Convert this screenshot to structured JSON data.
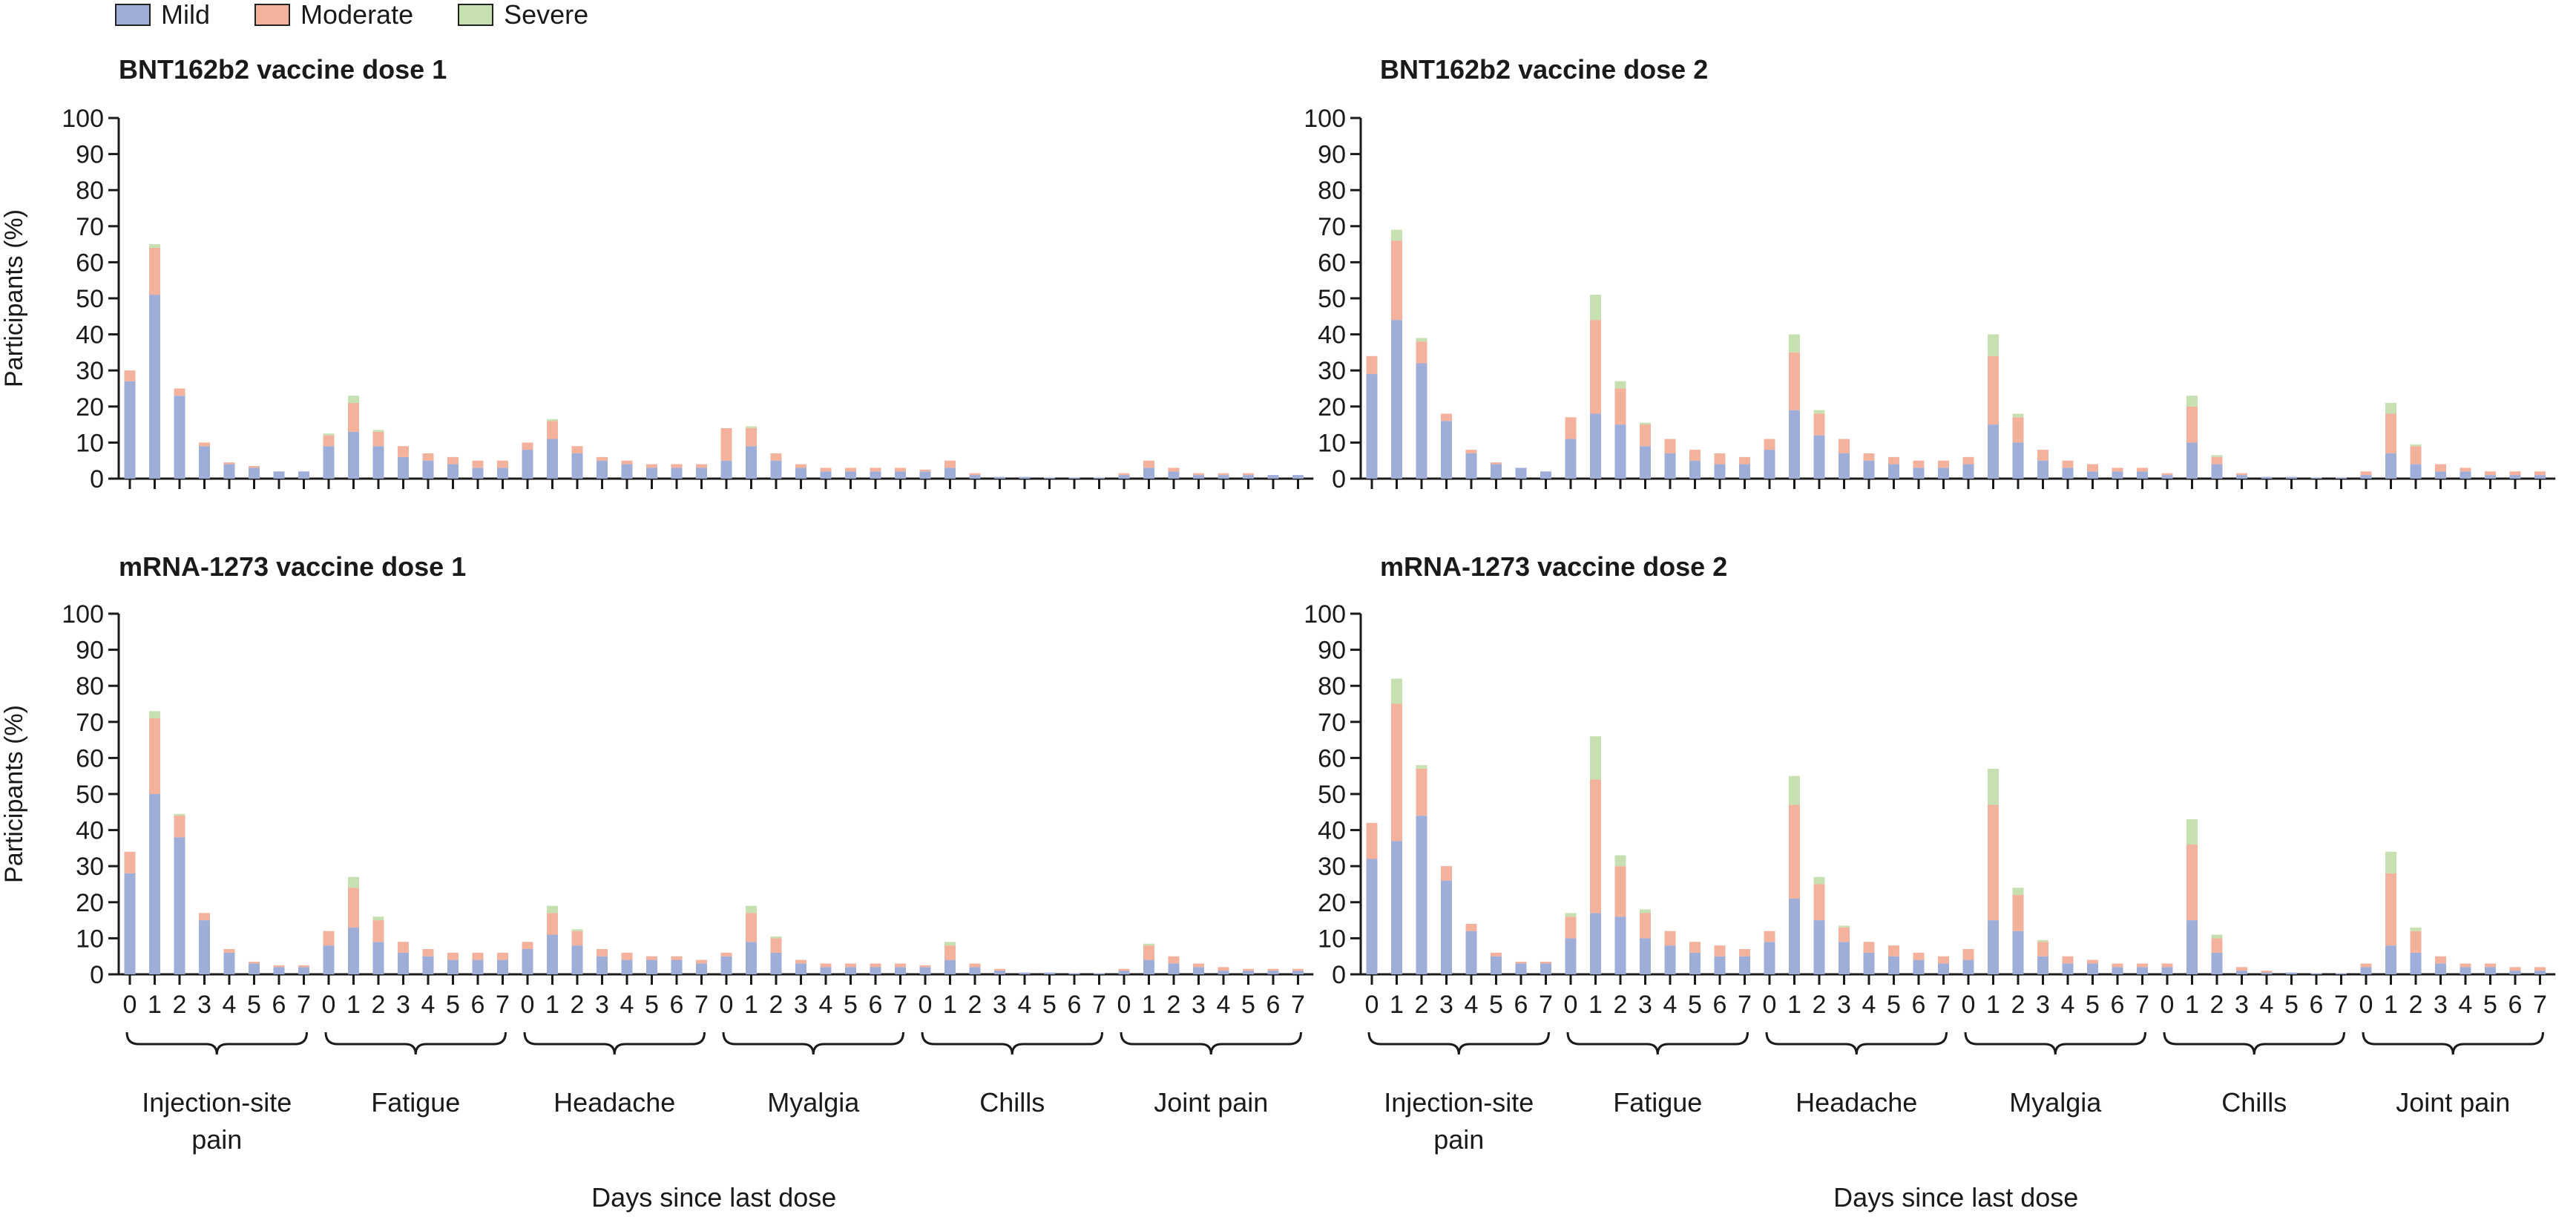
{
  "legend": [
    {
      "label": "Mild",
      "color": "#9fadd9"
    },
    {
      "label": "Moderate",
      "color": "#f4b19b"
    },
    {
      "label": "Severe",
      "color": "#c7e0b2"
    }
  ],
  "shared": {
    "ylabel": "Participants (%)",
    "xlabel": "Days since last dose",
    "days": [
      "0",
      "1",
      "2",
      "3",
      "4",
      "5",
      "6",
      "7"
    ],
    "groups": [
      "Injection-site pain",
      "Fatigue",
      "Headache",
      "Myalgia",
      "Chills",
      "Joint pain"
    ],
    "group_label_lines": [
      [
        "Injection-site",
        "pain"
      ],
      [
        "Fatigue"
      ],
      [
        "Headache"
      ],
      [
        "Myalgia"
      ],
      [
        "Chills"
      ],
      [
        "Joint pain"
      ]
    ],
    "yticks": [
      "0",
      "10",
      "20",
      "30",
      "40",
      "50",
      "60",
      "70",
      "80",
      "90",
      "100"
    ]
  },
  "chart_data": [
    {
      "type": "bar",
      "stacked": true,
      "title": "BNT162b2 vaccine dose 1",
      "ylabel": "Participants (%)",
      "ylim": [
        0,
        100
      ],
      "categories": [
        "Injection-site pain",
        "Fatigue",
        "Headache",
        "Myalgia",
        "Chills",
        "Joint pain"
      ],
      "x": [
        "0",
        "1",
        "2",
        "3",
        "4",
        "5",
        "6",
        "7"
      ],
      "series": [
        {
          "name": "Mild",
          "values": [
            [
              27,
              51,
              23,
              9,
              4,
              3,
              2,
              2
            ],
            [
              9,
              13,
              9,
              6,
              5,
              4,
              3,
              3
            ],
            [
              8,
              11,
              7,
              5,
              4,
              3,
              3,
              3
            ],
            [
              5,
              9,
              5,
              3,
              2,
              2,
              2,
              2
            ],
            [
              2,
              3,
              1,
              0.5,
              0.5,
              0.3,
              0.3,
              0.3
            ],
            [
              1,
              3,
              2,
              1,
              1,
              1,
              1,
              1
            ]
          ]
        },
        {
          "name": "Moderate",
          "values": [
            [
              3,
              13,
              2,
              1,
              0.5,
              0.5,
              0,
              0
            ],
            [
              3,
              8,
              4,
              3,
              2,
              2,
              2,
              2
            ],
            [
              2,
              5,
              2,
              1,
              1,
              1,
              1,
              1
            ],
            [
              9,
              5,
              2,
              1,
              1,
              1,
              1,
              1
            ],
            [
              0.5,
              2,
              0.5,
              0,
              0,
              0,
              0,
              0
            ],
            [
              0.5,
              2,
              1,
              0.5,
              0.5,
              0.5,
              0,
              0
            ]
          ]
        },
        {
          "name": "Severe",
          "values": [
            [
              0,
              1,
              0,
              0,
              0,
              0,
              0,
              0
            ],
            [
              0.5,
              2,
              0.5,
              0,
              0,
              0,
              0,
              0
            ],
            [
              0,
              0.5,
              0,
              0,
              0,
              0,
              0,
              0
            ],
            [
              0,
              0.5,
              0,
              0,
              0,
              0,
              0,
              0
            ],
            [
              0,
              0,
              0,
              0,
              0,
              0,
              0,
              0
            ],
            [
              0,
              0,
              0,
              0,
              0,
              0,
              0,
              0
            ]
          ]
        }
      ]
    },
    {
      "type": "bar",
      "stacked": true,
      "title": "BNT162b2 vaccine dose 2",
      "ylabel": "",
      "ylim": [
        0,
        100
      ],
      "categories": [
        "Injection-site pain",
        "Fatigue",
        "Headache",
        "Myalgia",
        "Chills",
        "Joint pain"
      ],
      "x": [
        "0",
        "1",
        "2",
        "3",
        "4",
        "5",
        "6",
        "7"
      ],
      "series": [
        {
          "name": "Mild",
          "values": [
            [
              29,
              44,
              32,
              16,
              7,
              4,
              3,
              2
            ],
            [
              11,
              18,
              15,
              9,
              7,
              5,
              4,
              4
            ],
            [
              8,
              19,
              12,
              7,
              5,
              4,
              3,
              3
            ],
            [
              4,
              15,
              10,
              5,
              3,
              2,
              2,
              2
            ],
            [
              1,
              10,
              4,
              1,
              0.5,
              0.5,
              0.3,
              0.3
            ],
            [
              1,
              7,
              4,
              2,
              2,
              1,
              1,
              1
            ]
          ]
        },
        {
          "name": "Moderate",
          "values": [
            [
              5,
              22,
              6,
              2,
              1,
              0.5,
              0,
              0
            ],
            [
              6,
              26,
              10,
              6,
              4,
              3,
              3,
              2
            ],
            [
              3,
              16,
              6,
              4,
              2,
              2,
              2,
              2
            ],
            [
              2,
              19,
              7,
              3,
              2,
              2,
              1,
              1
            ],
            [
              0.5,
              10,
              2,
              0.5,
              0,
              0,
              0,
              0
            ],
            [
              1,
              11,
              5,
              2,
              1,
              1,
              1,
              1
            ]
          ]
        },
        {
          "name": "Severe",
          "values": [
            [
              0,
              3,
              1,
              0,
              0,
              0,
              0,
              0
            ],
            [
              0,
              7,
              2,
              0.5,
              0,
              0,
              0,
              0
            ],
            [
              0,
              5,
              1,
              0,
              0,
              0,
              0,
              0
            ],
            [
              0,
              6,
              1,
              0,
              0,
              0,
              0,
              0
            ],
            [
              0,
              3,
              0.5,
              0,
              0,
              0,
              0,
              0
            ],
            [
              0,
              3,
              0.5,
              0,
              0,
              0,
              0,
              0
            ]
          ]
        }
      ]
    },
    {
      "type": "bar",
      "stacked": true,
      "title": "mRNA-1273 vaccine dose 1",
      "ylabel": "Participants (%)",
      "ylim": [
        0,
        100
      ],
      "categories": [
        "Injection-site pain",
        "Fatigue",
        "Headache",
        "Myalgia",
        "Chills",
        "Joint pain"
      ],
      "x": [
        "0",
        "1",
        "2",
        "3",
        "4",
        "5",
        "6",
        "7"
      ],
      "series": [
        {
          "name": "Mild",
          "values": [
            [
              28,
              50,
              38,
              15,
              6,
              3,
              2,
              2
            ],
            [
              8,
              13,
              9,
              6,
              5,
              4,
              4,
              4
            ],
            [
              7,
              11,
              8,
              5,
              4,
              4,
              4,
              3
            ],
            [
              5,
              9,
              6,
              3,
              2,
              2,
              2,
              2
            ],
            [
              2,
              4,
              2,
              1,
              0.5,
              0.5,
              0.3,
              0.3
            ],
            [
              1,
              4,
              3,
              2,
              1,
              1,
              1,
              1
            ]
          ]
        },
        {
          "name": "Moderate",
          "values": [
            [
              6,
              21,
              6,
              2,
              1,
              0.5,
              0.5,
              0.5
            ],
            [
              4,
              11,
              6,
              3,
              2,
              2,
              2,
              2
            ],
            [
              2,
              6,
              4,
              2,
              2,
              1,
              1,
              1
            ],
            [
              1,
              8,
              4,
              1,
              1,
              1,
              1,
              1
            ],
            [
              0.5,
              4,
              1,
              0.5,
              0,
              0,
              0,
              0
            ],
            [
              0.5,
              4,
              2,
              1,
              1,
              0.5,
              0.5,
              0.5
            ]
          ]
        },
        {
          "name": "Severe",
          "values": [
            [
              0,
              2,
              0.5,
              0,
              0,
              0,
              0,
              0
            ],
            [
              0,
              3,
              1,
              0,
              0,
              0,
              0,
              0
            ],
            [
              0,
              2,
              0.5,
              0,
              0,
              0,
              0,
              0
            ],
            [
              0,
              2,
              0.5,
              0,
              0,
              0,
              0,
              0
            ],
            [
              0,
              1,
              0,
              0,
              0,
              0,
              0,
              0
            ],
            [
              0,
              0.5,
              0,
              0,
              0,
              0,
              0,
              0
            ]
          ]
        }
      ]
    },
    {
      "type": "bar",
      "stacked": true,
      "title": "mRNA-1273 vaccine dose 2",
      "ylabel": "",
      "ylim": [
        0,
        100
      ],
      "categories": [
        "Injection-site pain",
        "Fatigue",
        "Headache",
        "Myalgia",
        "Chills",
        "Joint pain"
      ],
      "x": [
        "0",
        "1",
        "2",
        "3",
        "4",
        "5",
        "6",
        "7"
      ],
      "series": [
        {
          "name": "Mild",
          "values": [
            [
              32,
              37,
              44,
              26,
              12,
              5,
              3,
              3
            ],
            [
              10,
              17,
              16,
              10,
              8,
              6,
              5,
              5
            ],
            [
              9,
              21,
              15,
              9,
              6,
              5,
              4,
              3
            ],
            [
              4,
              15,
              12,
              5,
              3,
              3,
              2,
              2
            ],
            [
              2,
              15,
              6,
              1,
              0.5,
              0.5,
              0.3,
              0.3
            ],
            [
              2,
              8,
              6,
              3,
              2,
              2,
              1,
              1
            ]
          ]
        },
        {
          "name": "Moderate",
          "values": [
            [
              10,
              38,
              13,
              4,
              2,
              1,
              0.5,
              0.5
            ],
            [
              6,
              37,
              14,
              7,
              4,
              3,
              3,
              2
            ],
            [
              3,
              26,
              10,
              4,
              3,
              3,
              2,
              2
            ],
            [
              3,
              32,
              10,
              4,
              2,
              1,
              1,
              1
            ],
            [
              1,
              21,
              4,
              1,
              0.5,
              0,
              0,
              0
            ],
            [
              1,
              20,
              6,
              2,
              1,
              1,
              1,
              1
            ]
          ]
        },
        {
          "name": "Severe",
          "values": [
            [
              0,
              7,
              1,
              0,
              0,
              0,
              0,
              0
            ],
            [
              1,
              12,
              3,
              1,
              0,
              0,
              0,
              0
            ],
            [
              0,
              8,
              2,
              0.5,
              0,
              0,
              0,
              0
            ],
            [
              0,
              10,
              2,
              0.5,
              0,
              0,
              0,
              0
            ],
            [
              0,
              7,
              1,
              0,
              0,
              0,
              0,
              0
            ],
            [
              0,
              6,
              1,
              0,
              0,
              0,
              0,
              0
            ]
          ]
        }
      ]
    }
  ]
}
